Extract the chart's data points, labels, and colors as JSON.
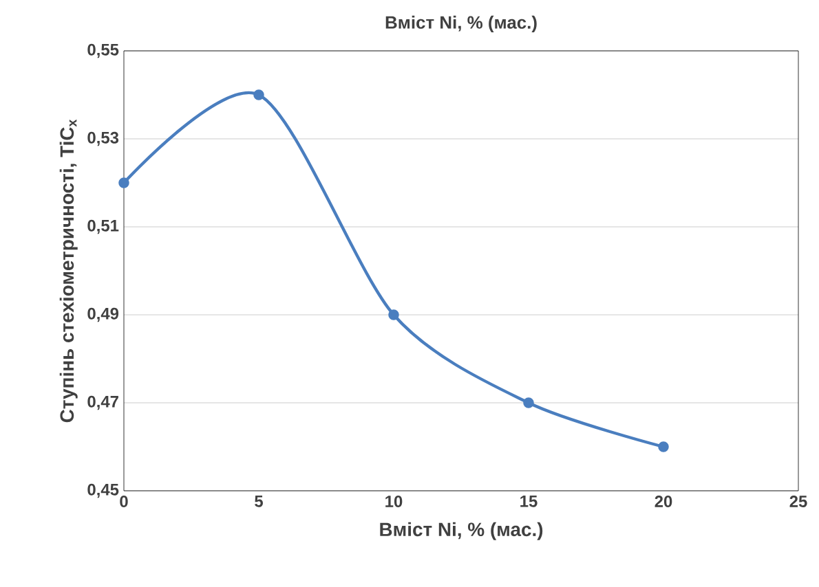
{
  "chart_data": {
    "type": "line",
    "title": "Вміст Ni, % (мас.)",
    "xlabel": "Вміст Ni, % (мас.)",
    "ylabel": "Ступінь стехіометричності, TiC$_{x}$",
    "x": [
      0,
      5,
      10,
      15,
      20
    ],
    "series": [
      {
        "color": "#4a7ebf",
        "values": [
          0.52,
          0.54,
          0.49,
          0.47,
          0.46
        ]
      }
    ],
    "xlim": [
      0,
      25
    ],
    "xticks": [
      0,
      5,
      10,
      15,
      20,
      25
    ],
    "ylim": [
      0.45,
      0.55
    ],
    "yticks": [
      {
        "value": 0.45,
        "label": "0,45"
      },
      {
        "value": 0.47,
        "label": "0,47"
      },
      {
        "value": 0.49,
        "label": "0,49"
      },
      {
        "value": 0.51,
        "label": "0,51"
      },
      {
        "value": 0.53,
        "label": "0,53"
      },
      {
        "value": 0.55,
        "label": "0,55"
      }
    ],
    "grid": "y",
    "marker": "circle",
    "line_style": "solid"
  }
}
